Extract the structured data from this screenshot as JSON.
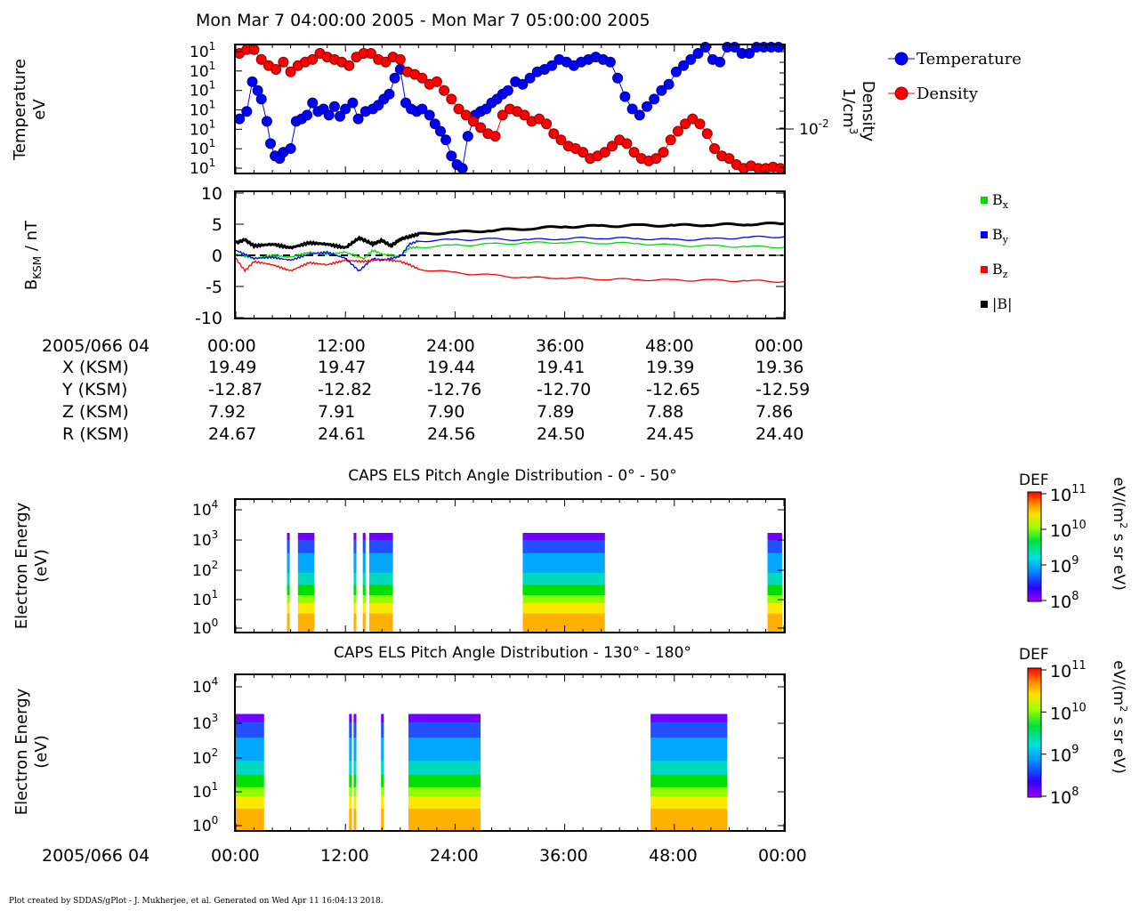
{
  "header": {
    "title": "Mon Mar 7 04:00:00 2005 - Mon Mar 7 05:00:00 2005"
  },
  "footer": {
    "credit": "Plot created by SDDAS/gPlot - J. Mukherjee, et al.  Generated on Wed Apr 11 16:04:13 2018."
  },
  "colors": {
    "temperature": "#0000ff",
    "density": "#ff0000",
    "bx": "#00dd00",
    "by": "#0000ff",
    "bz": "#ff0000",
    "btot": "#000000"
  },
  "ephemeris": {
    "date_label": "2005/066 04",
    "times": [
      "00:00",
      "12:00",
      "24:00",
      "36:00",
      "48:00",
      "00:00"
    ],
    "rows": [
      {
        "label": "X (KSM)",
        "values": [
          "19.49",
          "19.47",
          "19.44",
          "19.41",
          "19.39",
          "19.36"
        ]
      },
      {
        "label": "Y (KSM)",
        "values": [
          "-12.87",
          "-12.82",
          "-12.76",
          "-12.70",
          "-12.65",
          "-12.59"
        ]
      },
      {
        "label": "Z (KSM)",
        "values": [
          "7.92",
          "7.91",
          "7.90",
          "7.89",
          "7.88",
          "7.86"
        ]
      },
      {
        "label": "R (KSM)",
        "values": [
          "24.67",
          "24.61",
          "24.56",
          "24.50",
          "24.45",
          "24.40"
        ]
      }
    ]
  },
  "bottom_axis": {
    "date_label": "2005/066 04",
    "times": [
      "00:00",
      "12:00",
      "24:00",
      "36:00",
      "48:00",
      "00:00"
    ]
  },
  "chart_data": [
    {
      "type": "scatter",
      "panel": "moments",
      "ylabel_left": [
        "Temperature",
        "eV"
      ],
      "ylabel_right": [
        "Density",
        "1/cm3"
      ],
      "left_ticks": [
        "10",
        "10",
        "10",
        "10",
        "10",
        "10",
        "10"
      ],
      "left_tick_exp": "1",
      "right_tick": "10",
      "right_tick_exp": "-2",
      "x_range_minutes": [
        0,
        60
      ],
      "legend": [
        "Temperature",
        "Density"
      ],
      "series": [
        {
          "name": "Temperature",
          "marker": "circle",
          "x": [
            0.4,
            1.2,
            1.8,
            2.4,
            2.8,
            3.4,
            3.8,
            4.3,
            4.8,
            5.2,
            6,
            6.6,
            7.2,
            7.8,
            8.4,
            9,
            9.6,
            10.2,
            10.8,
            11.4,
            12,
            12.8,
            13.4,
            14.2,
            15,
            15.6,
            16.2,
            16.8,
            17.4,
            18,
            18.6,
            19.2,
            19.8,
            20.4,
            21.2,
            21.8,
            22.4,
            23,
            23.6,
            24.2,
            24.8,
            25.4,
            26.2,
            26.8,
            27.4,
            28,
            28.6,
            29.2,
            29.8,
            30.6,
            31.4,
            32.2,
            33,
            33.8,
            34.6,
            35.4,
            36.2,
            37,
            37.8,
            38.6,
            39.4,
            40.2,
            41,
            41.8,
            42.6,
            43.4,
            44.2,
            45,
            45.8,
            46.6,
            47.4,
            48.2,
            49,
            49.8,
            50.6,
            51.4,
            52.2,
            53,
            53.8,
            54.6,
            55.4,
            56.2,
            57,
            57.8,
            58.6,
            59.4
          ],
          "y": [
            0.58,
            0.52,
            0.28,
            0.35,
            0.42,
            0.6,
            0.78,
            0.88,
            0.9,
            0.85,
            0.82,
            0.6,
            0.58,
            0.55,
            0.45,
            0.52,
            0.5,
            0.55,
            0.48,
            0.56,
            0.5,
            0.45,
            0.58,
            0.52,
            0.5,
            0.47,
            0.42,
            0.38,
            0.25,
            0.18,
            0.45,
            0.5,
            0.52,
            0.5,
            0.55,
            0.62,
            0.68,
            0.75,
            0.88,
            0.95,
            0.98,
            0.72,
            0.55,
            0.52,
            0.5,
            0.45,
            0.42,
            0.38,
            0.35,
            0.28,
            0.3,
            0.25,
            0.2,
            0.18,
            0.15,
            0.1,
            0.12,
            0.15,
            0.12,
            0.1,
            0.08,
            0.1,
            0.12,
            0.25,
            0.4,
            0.5,
            0.55,
            0.48,
            0.42,
            0.35,
            0.3,
            0.2,
            0.15,
            0.1,
            0.05,
            0.0,
            0.1,
            0.12,
            0.0,
            0.0,
            0.05,
            0.05,
            0.0,
            0.0,
            0.0,
            0.0
          ]
        },
        {
          "name": "Density",
          "marker": "circle",
          "x": [
            0.4,
            1.2,
            2,
            2.8,
            3.6,
            4.4,
            5.2,
            6,
            6.8,
            7.6,
            8.4,
            9.2,
            10,
            10.8,
            11.6,
            12.4,
            13.2,
            14,
            14.8,
            15.6,
            16.4,
            17.2,
            18,
            18.8,
            19.6,
            20.4,
            21.2,
            22,
            22.8,
            23.6,
            24.4,
            25.2,
            26,
            26.8,
            27.6,
            28.4,
            29.2,
            30,
            30.8,
            31.6,
            32.4,
            33.2,
            34,
            34.8,
            35.6,
            36.4,
            37.2,
            38,
            38.8,
            39.6,
            40.4,
            41.2,
            42,
            42.8,
            43.6,
            44.4,
            45.2,
            46,
            46.8,
            47.6,
            48.4,
            49.2,
            50,
            50.8,
            51.6,
            52.4,
            53.2,
            54,
            54.8,
            55.6,
            56.4,
            57.2,
            58,
            58.8,
            59.6
          ],
          "y": [
            0.05,
            0.02,
            0.02,
            0.1,
            0.15,
            0.18,
            0.12,
            0.2,
            0.15,
            0.12,
            0.1,
            0.05,
            0.08,
            0.1,
            0.12,
            0.15,
            0.08,
            0.05,
            0.05,
            0.1,
            0.12,
            0.08,
            0.1,
            0.2,
            0.22,
            0.25,
            0.3,
            0.28,
            0.35,
            0.42,
            0.5,
            0.55,
            0.6,
            0.65,
            0.7,
            0.72,
            0.55,
            0.5,
            0.52,
            0.55,
            0.6,
            0.58,
            0.62,
            0.7,
            0.75,
            0.8,
            0.82,
            0.85,
            0.9,
            0.88,
            0.85,
            0.8,
            0.75,
            0.78,
            0.85,
            0.9,
            0.92,
            0.9,
            0.85,
            0.75,
            0.68,
            0.62,
            0.58,
            0.62,
            0.7,
            0.82,
            0.88,
            0.9,
            0.95,
            0.98,
            0.96,
            0.98,
            0.98,
            0.97,
            0.98
          ]
        }
      ]
    },
    {
      "type": "line",
      "panel": "magnetic_field",
      "ylabel": "B_KSM / nT",
      "ylim": [
        -10,
        10
      ],
      "yticks": [
        "10",
        "5",
        "0",
        "-5",
        "-10"
      ],
      "x_range_minutes": [
        0,
        60
      ],
      "legend": [
        "Bx",
        "By",
        "Bz",
        "|B|"
      ],
      "series": [
        {
          "name": "Bx",
          "x": [
            0,
            2,
            4,
            6,
            8,
            10,
            12,
            14,
            15,
            16,
            18,
            19,
            20,
            24,
            28,
            32,
            36,
            40,
            44,
            48,
            52,
            56,
            60
          ],
          "y": [
            0.2,
            -0.5,
            0,
            -0.3,
            0.5,
            0.2,
            0.5,
            -0.5,
            0.8,
            0.2,
            -0.2,
            1.2,
            1.3,
            1.6,
            1.8,
            2.0,
            2.1,
            2.0,
            1.9,
            1.6,
            1.5,
            1.4,
            1.3
          ]
        },
        {
          "name": "By",
          "x": [
            0,
            2,
            4,
            6,
            8,
            10,
            12,
            13.5,
            15,
            16,
            18,
            19,
            20,
            24,
            28,
            32,
            36,
            40,
            44,
            48,
            52,
            56,
            60
          ],
          "y": [
            0.8,
            -0.5,
            -0.3,
            -0.8,
            0.2,
            0.5,
            -0.5,
            -2.5,
            -0.5,
            -0.8,
            -0.2,
            1.8,
            2.3,
            2.5,
            2.6,
            2.5,
            2.7,
            2.8,
            2.7,
            2.5,
            2.6,
            2.9,
            3.0
          ]
        },
        {
          "name": "Bz",
          "x": [
            0,
            1,
            2,
            4,
            6,
            8,
            10,
            12,
            14,
            16,
            18,
            19,
            20,
            24,
            28,
            32,
            36,
            40,
            44,
            48,
            52,
            56,
            60
          ],
          "y": [
            -0.5,
            -2.5,
            -1,
            -1.5,
            -2.5,
            -1.2,
            -1.5,
            -0.8,
            -1,
            -0.6,
            -1,
            -1.5,
            -2.2,
            -2.8,
            -3.2,
            -3.6,
            -3.6,
            -3.8,
            -3.9,
            -4.0,
            -4.0,
            -4.1,
            -4.2
          ]
        },
        {
          "name": "|B|",
          "x": [
            0,
            1,
            2,
            4,
            6,
            8,
            10,
            12,
            13.5,
            15,
            16,
            17,
            18,
            19,
            20,
            24,
            28,
            32,
            36,
            40,
            44,
            48,
            52,
            56,
            60
          ],
          "y": [
            2,
            2.5,
            1.5,
            1.8,
            1.2,
            2,
            1.8,
            1.2,
            2.8,
            1.8,
            2.4,
            1.5,
            2.6,
            3,
            3.4,
            3.7,
            4,
            4.3,
            4.6,
            4.7,
            4.8,
            4.8,
            4.9,
            5.0,
            5.1
          ]
        }
      ]
    },
    {
      "type": "heatmap",
      "panel": "els_0_50",
      "title": "CAPS ELS Pitch Angle Distribution - 0° - 50°",
      "ylabel": [
        "Electron Energy",
        "(eV)"
      ],
      "yticks": [
        "10",
        "10",
        "10",
        "10",
        "10"
      ],
      "ytick_exps": [
        "4",
        "3",
        "2",
        "1",
        "0"
      ],
      "colorbar": {
        "label": "DEF",
        "units": "eV/(m2 s sr eV)",
        "ticks": [
          "10",
          "10",
          "10",
          "10"
        ],
        "tick_exps": [
          "11",
          "10",
          "9",
          "8"
        ]
      },
      "bursts_minutes": [
        [
          5.6,
          5.9
        ],
        [
          6.8,
          8.6
        ],
        [
          12.9,
          13.2
        ],
        [
          13.9,
          14.2
        ],
        [
          14.6,
          17.2
        ],
        [
          31.4,
          40.4
        ],
        [
          58.2,
          59.8
        ]
      ]
    },
    {
      "type": "heatmap",
      "panel": "els_130_180",
      "title": "CAPS ELS Pitch Angle Distribution - 130° - 180°",
      "ylabel": [
        "Electron Energy",
        "(eV)"
      ],
      "yticks": [
        "10",
        "10",
        "10",
        "10",
        "10"
      ],
      "ytick_exps": [
        "4",
        "3",
        "2",
        "1",
        "0"
      ],
      "colorbar": {
        "label": "DEF",
        "units": "eV/(m2 s sr eV)",
        "ticks": [
          "10",
          "10",
          "10",
          "10"
        ],
        "tick_exps": [
          "11",
          "10",
          "9",
          "8"
        ]
      },
      "bursts_minutes": [
        [
          0.0,
          3.1
        ],
        [
          12.4,
          12.7
        ],
        [
          12.9,
          13.2
        ],
        [
          15.9,
          16.2
        ],
        [
          18.9,
          26.8
        ],
        [
          45.4,
          53.8
        ]
      ]
    }
  ]
}
